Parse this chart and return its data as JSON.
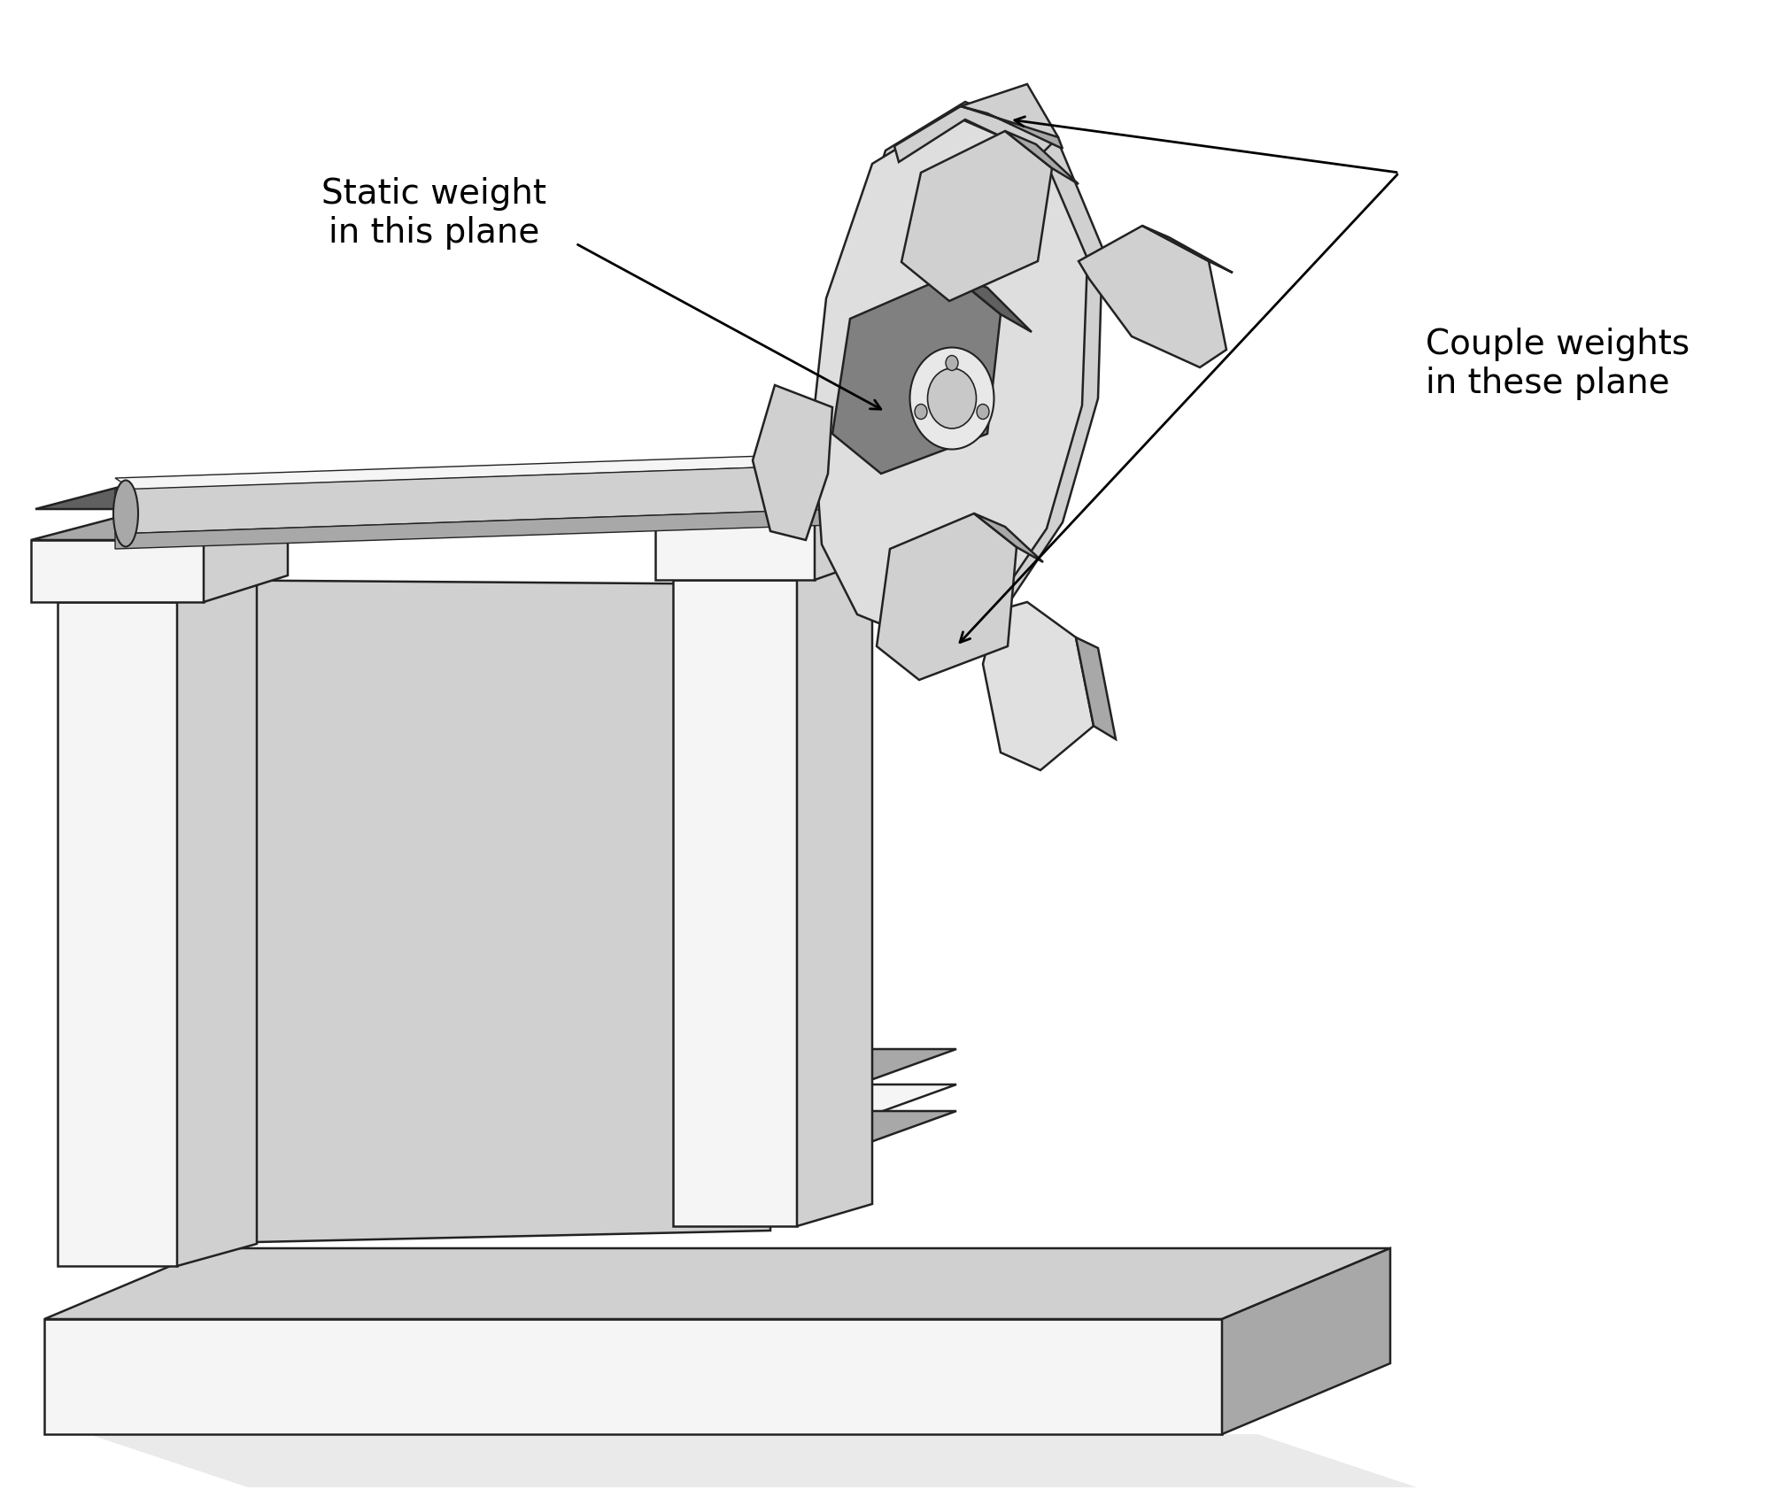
{
  "bg_color": "#ffffff",
  "c_white": "#f5f5f5",
  "c_light": "#d0d0d0",
  "c_mid": "#a8a8a8",
  "c_dark": "#808080",
  "c_darker": "#606060",
  "c_outline": "#222222",
  "c_shadow": "#c0c0c0",
  "label1": "Static weight\nin this plane",
  "label2": "Couple weights\nin these plane",
  "figsize": [
    20,
    17
  ],
  "dpi": 100
}
